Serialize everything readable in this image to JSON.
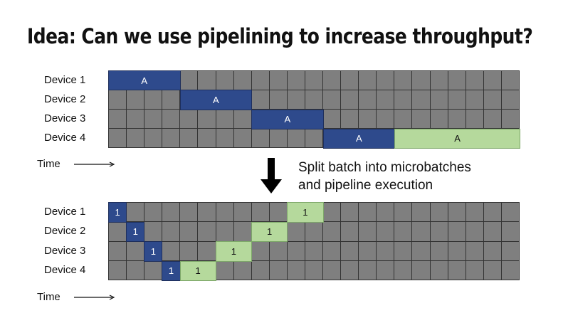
{
  "title": "Idea: Can we use pipelining to increase throughput?",
  "time_label": "Time",
  "caption": {
    "line1": "Split batch into microbatches",
    "line2": "and pipeline execution"
  },
  "columns": 23,
  "colors": {
    "idle": "#7f7f7f",
    "forward": "#2e4a8c",
    "backward": "#b5d99c",
    "gridline": "#333333"
  },
  "top_diagram": {
    "devices": [
      "Device 1",
      "Device 2",
      "Device 3",
      "Device 4"
    ],
    "blocks": [
      {
        "device": 0,
        "start": 0,
        "span": 4,
        "type": "forward",
        "label": "A"
      },
      {
        "device": 1,
        "start": 4,
        "span": 4,
        "type": "forward",
        "label": "A"
      },
      {
        "device": 2,
        "start": 8,
        "span": 4,
        "type": "forward",
        "label": "A"
      },
      {
        "device": 3,
        "start": 12,
        "span": 4,
        "type": "forward",
        "label": "A"
      },
      {
        "device": 3,
        "start": 16,
        "span": 7,
        "type": "backward",
        "label": "A"
      }
    ]
  },
  "bottom_diagram": {
    "devices": [
      "Device 1",
      "Device 2",
      "Device 3",
      "Device 4"
    ],
    "blocks": [
      {
        "device": 0,
        "start": 0,
        "span": 1,
        "type": "forward",
        "label": "1"
      },
      {
        "device": 1,
        "start": 1,
        "span": 1,
        "type": "forward",
        "label": "1"
      },
      {
        "device": 2,
        "start": 2,
        "span": 1,
        "type": "forward",
        "label": "1"
      },
      {
        "device": 3,
        "start": 3,
        "span": 1,
        "type": "forward",
        "label": "1"
      },
      {
        "device": 3,
        "start": 4,
        "span": 2,
        "type": "backward",
        "label": "1"
      },
      {
        "device": 2,
        "start": 6,
        "span": 2,
        "type": "backward",
        "label": "1"
      },
      {
        "device": 1,
        "start": 8,
        "span": 2,
        "type": "backward",
        "label": "1"
      },
      {
        "device": 0,
        "start": 10,
        "span": 2,
        "type": "backward",
        "label": "1"
      }
    ]
  }
}
